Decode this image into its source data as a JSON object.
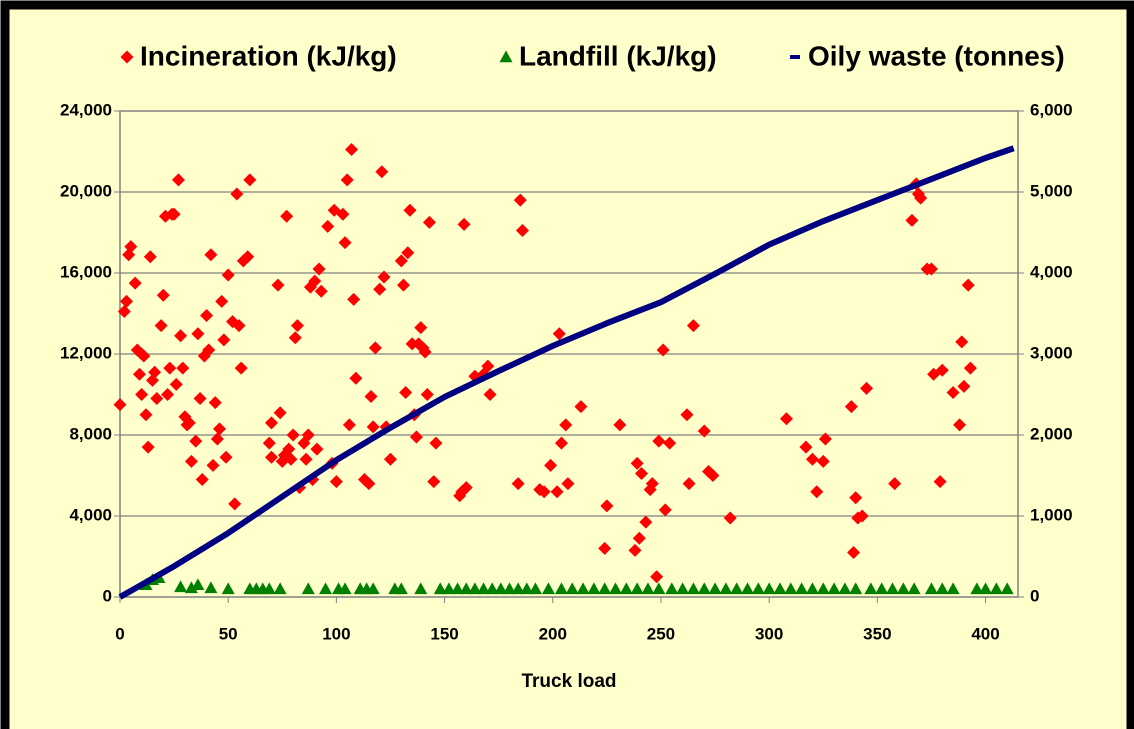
{
  "chart_data": {
    "type": "scatter",
    "xlabel": "Truck load",
    "xlim": [
      0,
      415
    ],
    "xticks": [
      0,
      50,
      100,
      150,
      200,
      250,
      300,
      350,
      400
    ],
    "ylim": [
      0,
      24000
    ],
    "yticks": [
      0,
      {
        "value": 4000,
        "label": "4,000"
      },
      {
        "value": 8000,
        "label": "8,000"
      },
      {
        "value": 12000,
        "label": "12,000"
      },
      {
        "value": 16000,
        "label": "16,000"
      },
      {
        "value": 20000,
        "label": "20,000"
      },
      {
        "value": 24000,
        "label": "24,000"
      }
    ],
    "y2lim": [
      0,
      6000
    ],
    "y2ticks": [
      0,
      {
        "value": 1000,
        "label": "1,000"
      },
      {
        "value": 2000,
        "label": "2,000"
      },
      {
        "value": 3000,
        "label": "3,000"
      },
      {
        "value": 4000,
        "label": "4,000"
      },
      {
        "value": 5000,
        "label": "5,000"
      },
      {
        "value": 6000,
        "label": "6,000"
      }
    ],
    "grid": true,
    "legend": "top",
    "series": [
      {
        "name": "Incineration (kJ/kg)",
        "color": "#ff0000",
        "marker": "diamond",
        "type": "scatter",
        "x": [
          0,
          2,
          3,
          4,
          5,
          7,
          8,
          9,
          10,
          10,
          11,
          12,
          13,
          14,
          15,
          16,
          17,
          19,
          20,
          21,
          22,
          23,
          24,
          25,
          26,
          27,
          28,
          29,
          30,
          31,
          32,
          33,
          35,
          36,
          37,
          38,
          39,
          40,
          41,
          42,
          43,
          44,
          45,
          46,
          47,
          48,
          49,
          50,
          52,
          53,
          54,
          55,
          56,
          57,
          59,
          60,
          69,
          70,
          70,
          73,
          74,
          75,
          76,
          77,
          78,
          79,
          80,
          81,
          82,
          83,
          85,
          86,
          87,
          88,
          89,
          90,
          91,
          92,
          93,
          96,
          98,
          99,
          100,
          103,
          104,
          105,
          106,
          107,
          108,
          109,
          113,
          115,
          116,
          117,
          118,
          120,
          121,
          122,
          123,
          125,
          130,
          131,
          132,
          133,
          134,
          135,
          136,
          137,
          138,
          139,
          140,
          141,
          142,
          143,
          145,
          146,
          157,
          158,
          159,
          160,
          164,
          168,
          170,
          171,
          184,
          185,
          186,
          194,
          196,
          199,
          202,
          203,
          204,
          206,
          207,
          213,
          224,
          225,
          231,
          238,
          239,
          240,
          241,
          243,
          245,
          246,
          248,
          249,
          251,
          252,
          254,
          262,
          263,
          265,
          270,
          272,
          274,
          282,
          308,
          317,
          320,
          322,
          325,
          326,
          338,
          339,
          340,
          341,
          343,
          345,
          358,
          366,
          368,
          369,
          370,
          373,
          375,
          376,
          379,
          380,
          385,
          388,
          389,
          390,
          392,
          393
        ],
        "values": [
          9500,
          14100,
          14600,
          16900,
          17300,
          15500,
          12200,
          11000,
          12000,
          10000,
          11900,
          9000,
          7400,
          16800,
          10700,
          11100,
          9800,
          13400,
          14900,
          18800,
          10000,
          11300,
          18900,
          18900,
          10500,
          20600,
          12900,
          11300,
          8900,
          8500,
          8600,
          6700,
          7700,
          13000,
          9800,
          5800,
          11900,
          13900,
          12200,
          16900,
          6500,
          9600,
          7800,
          8300,
          14600,
          12700,
          6900,
          15900,
          13600,
          4600,
          19900,
          13400,
          11300,
          16600,
          16800,
          20600,
          7600,
          6900,
          8600,
          15400,
          9100,
          6700,
          7000,
          18800,
          7300,
          6800,
          8000,
          12800,
          13400,
          5400,
          7600,
          6800,
          8000,
          15300,
          5800,
          15600,
          7300,
          16200,
          15100,
          18300,
          6600,
          19100,
          5700,
          18900,
          17500,
          20600,
          8500,
          22100,
          14700,
          10800,
          5800,
          5600,
          9900,
          8400,
          12300,
          15200,
          21000,
          15800,
          8400,
          6800,
          16600,
          15400,
          10100,
          17000,
          19100,
          12500,
          9000,
          7900,
          12500,
          13300,
          12300,
          12100,
          10000,
          18500,
          5700,
          7600,
          5000,
          5200,
          18400,
          5400,
          10900,
          11000,
          11400,
          10000,
          5600,
          19600,
          18100,
          5300,
          5200,
          6500,
          5200,
          13000,
          7600,
          8500,
          5600,
          9400,
          2400,
          4500,
          8500,
          2300,
          6600,
          2900,
          6100,
          3700,
          5300,
          5600,
          1000,
          7700,
          12200,
          4300,
          7600,
          9000,
          5600,
          13400,
          8200,
          6200,
          6000,
          3900,
          8800,
          7400,
          6800,
          5200,
          6700,
          7800,
          9400,
          2200,
          4900,
          3900,
          4000,
          10300,
          5600,
          18600,
          20400,
          19900,
          19700,
          16200,
          16200,
          11000,
          5700,
          11200,
          10100,
          8500,
          12600,
          10400,
          15400,
          11300
        ]
      },
      {
        "name": "Landfill (kJ/kg)",
        "color": "#008000",
        "marker": "triangle",
        "type": "scatter",
        "x": [
          12,
          15,
          18,
          28,
          33,
          36,
          42,
          50,
          60,
          63,
          66,
          69,
          74,
          87,
          95,
          101,
          104,
          111,
          114,
          117,
          127,
          130,
          139,
          148,
          152,
          156,
          160,
          164,
          168,
          172,
          176,
          180,
          184,
          188,
          192,
          198,
          204,
          209,
          214,
          219,
          224,
          229,
          234,
          239,
          244,
          249,
          255,
          260,
          265,
          270,
          275,
          280,
          285,
          290,
          295,
          300,
          305,
          310,
          315,
          320,
          325,
          330,
          335,
          340,
          347,
          352,
          357,
          362,
          367,
          375,
          380,
          385,
          396,
          400,
          405,
          410
        ],
        "values": [
          600,
          850,
          950,
          500,
          450,
          600,
          450,
          400,
          400,
          400,
          400,
          400,
          400,
          400,
          400,
          400,
          400,
          400,
          400,
          400,
          400,
          400,
          400,
          400,
          400,
          400,
          400,
          400,
          400,
          400,
          400,
          400,
          400,
          400,
          400,
          400,
          400,
          400,
          400,
          400,
          400,
          400,
          400,
          400,
          400,
          400,
          400,
          400,
          400,
          400,
          400,
          400,
          400,
          400,
          400,
          400,
          400,
          400,
          400,
          400,
          400,
          400,
          400,
          400,
          400,
          400,
          400,
          400,
          400,
          400,
          400,
          400,
          400,
          400,
          400,
          400
        ]
      },
      {
        "name": "Oily waste (tonnes)",
        "color": "#000080",
        "type": "line",
        "axis": "y2",
        "x": [
          0,
          25,
          50,
          75,
          100,
          125,
          150,
          175,
          200,
          225,
          250,
          275,
          300,
          325,
          350,
          375,
          400,
          413
        ],
        "values": [
          0,
          380,
          790,
          1240,
          1690,
          2090,
          2470,
          2790,
          3100,
          3380,
          3640,
          3990,
          4350,
          4640,
          4900,
          5160,
          5420,
          5540
        ]
      }
    ]
  }
}
